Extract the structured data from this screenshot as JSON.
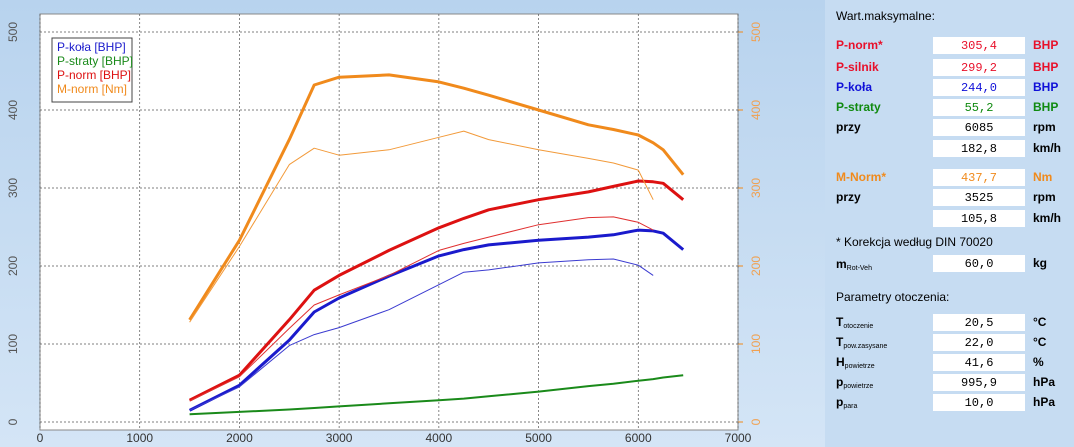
{
  "chart_data": {
    "type": "line",
    "x": [
      1500,
      2000,
      2500,
      2750,
      3000,
      3500,
      4000,
      4250,
      4500,
      5000,
      5500,
      5750,
      6000,
      6150,
      6250,
      6450
    ],
    "xlim": [
      0,
      7000
    ],
    "xticks": [
      0,
      1000,
      2000,
      3000,
      4000,
      5000,
      6000,
      7000
    ],
    "ylim": [
      0,
      500
    ],
    "yticks": [
      0,
      100,
      200,
      300,
      400,
      500
    ],
    "y2lim": [
      0,
      500
    ],
    "y2ticks": [
      0,
      100,
      200,
      300,
      400,
      500
    ],
    "grid": true,
    "legend": "upper left",
    "series": [
      {
        "name": "P-koła [BHP]",
        "color": "#1a1acc",
        "width": 3,
        "values": [
          15,
          47,
          105,
          141,
          159,
          187,
          213,
          221,
          227,
          233,
          237,
          240,
          246,
          245,
          242,
          221
        ]
      },
      {
        "name": "P-straty [BHP]",
        "color": "#1a8a1a",
        "width": 2,
        "values": [
          10,
          13,
          16,
          18,
          20,
          24,
          28,
          30,
          33,
          39,
          46,
          49,
          53,
          55,
          57,
          60
        ]
      },
      {
        "name": "P-norm [BHP]",
        "color": "#dd1111",
        "width": 3,
        "values": [
          28,
          60,
          131,
          169,
          188,
          220,
          249,
          261,
          272,
          285,
          295,
          302,
          309,
          308,
          306,
          285
        ]
      },
      {
        "name": "M-norm [Nm]",
        "color": "#f08a1c",
        "width": 3,
        "axis": "y2",
        "values": [
          131,
          233,
          362,
          432,
          442,
          445,
          436,
          428,
          419,
          400,
          381,
          375,
          368,
          358,
          349,
          317
        ]
      },
      {
        "color": "#3b3bd0",
        "width": 1,
        "values": [
          15,
          45,
          98,
          112,
          121,
          144,
          176,
          192,
          195,
          204,
          208,
          209,
          201,
          188,
          null,
          null
        ]
      },
      {
        "color": "#e03030",
        "width": 1,
        "values": [
          27,
          58,
          120,
          150,
          163,
          188,
          220,
          229,
          237,
          253,
          262,
          263,
          256,
          246,
          null,
          null
        ]
      },
      {
        "color": "#f29a3a",
        "width": 1,
        "axis": "y2",
        "values": [
          128,
          225,
          330,
          351,
          342,
          349,
          365,
          373,
          362,
          349,
          338,
          332,
          323,
          285,
          null,
          null
        ]
      }
    ]
  },
  "panel": {
    "title": "Wart.maksymalne:",
    "rows": [
      {
        "label": "P-norm*",
        "value": "305,4",
        "unit": "BHP",
        "color": "#e8102a"
      },
      {
        "label": "P-silnik",
        "value": "299,2",
        "unit": "BHP",
        "color": "#e8102a"
      },
      {
        "label": "P-koła",
        "value": "244,0",
        "unit": "BHP",
        "color": "#1010d8"
      },
      {
        "label": "P-straty",
        "value": "55,2",
        "unit": "BHP",
        "color": "#108a10"
      },
      {
        "label": "przy",
        "value": "6085",
        "unit": "rpm",
        "color": "#000000"
      },
      {
        "value": "182,8",
        "unit": "km/h",
        "color": "#000000"
      },
      {
        "label": "M-Norm*",
        "value": "437,7",
        "unit": "Nm",
        "color": "#f08a1c"
      },
      {
        "label": "przy",
        "value": "3525",
        "unit": "rpm",
        "color": "#000000"
      },
      {
        "value": "105,8",
        "unit": "km/h",
        "color": "#000000"
      }
    ],
    "note": "* Korekcja według DIN 70020",
    "mass": {
      "label": "m",
      "sub": "Rot-Veh",
      "value": "60,0",
      "unit": "kg"
    },
    "env_title": "Parametry otoczenia:",
    "env": [
      {
        "label": "T",
        "sub": "otoczenie",
        "value": "20,5",
        "unit": "°C"
      },
      {
        "label": "T",
        "sub": "pow.zasysane",
        "value": "22,0",
        "unit": "°C"
      },
      {
        "label": "H",
        "sub": "powietrze",
        "value": "41,6",
        "unit": "%"
      },
      {
        "label": "p",
        "sub": "powietrze",
        "value": "995,9",
        "unit": "hPa"
      },
      {
        "label": "p",
        "sub": "para",
        "value": "10,0",
        "unit": "hPa"
      }
    ]
  }
}
